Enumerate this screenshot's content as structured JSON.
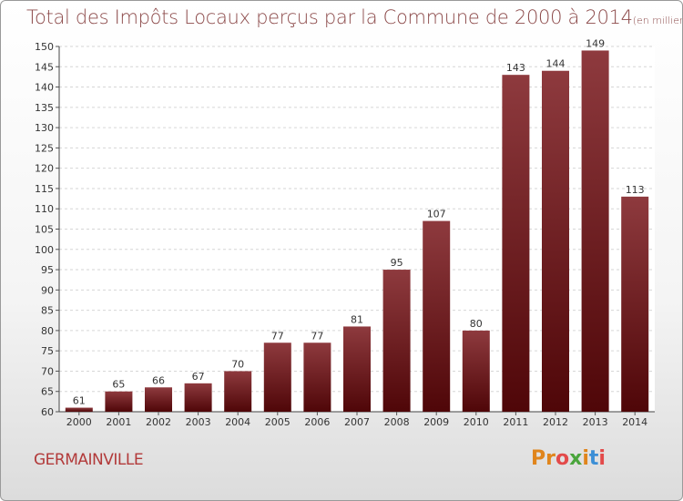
{
  "header": {
    "title": "Total des Impôts Locaux perçus par la Commune de 2000 à 2014",
    "unit": "(en milliers d'€)"
  },
  "footer": {
    "commune": "GERMAINVILLE",
    "logo": [
      "Pr",
      "o",
      "x",
      "i",
      "t",
      "i"
    ]
  },
  "colors": {
    "bar_top": "#8e3a3e",
    "bar_bottom": "#4f0608",
    "title": "#8c4a4a",
    "commune": "#b23a3a"
  },
  "chart_data": {
    "type": "bar",
    "title": "Total des Impôts Locaux perçus par la Commune de 2000 à 2014",
    "xlabel": "",
    "ylabel": "",
    "categories": [
      "2000",
      "2001",
      "2002",
      "2003",
      "2004",
      "2005",
      "2006",
      "2007",
      "2008",
      "2009",
      "2010",
      "2011",
      "2012",
      "2013",
      "2014"
    ],
    "values": [
      61,
      65,
      66,
      67,
      70,
      77,
      77,
      81,
      95,
      107,
      80,
      143,
      144,
      149,
      113
    ],
    "ylim": [
      60,
      150
    ],
    "yticks": [
      60,
      65,
      70,
      75,
      80,
      85,
      90,
      95,
      100,
      105,
      110,
      115,
      120,
      125,
      130,
      135,
      140,
      145,
      150
    ],
    "grid": true
  }
}
